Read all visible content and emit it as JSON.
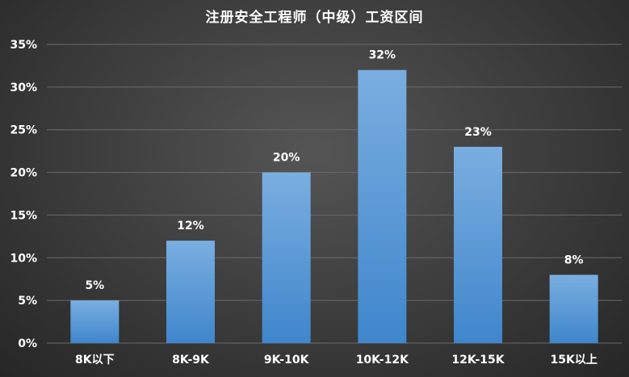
{
  "chart_data": {
    "type": "bar",
    "title": "注册安全工程师（中级）工资区间",
    "categories": [
      "8K以下",
      "8K-9K",
      "9K-10K",
      "10K-12K",
      "12K-15K",
      "15K以上"
    ],
    "values": [
      5,
      12,
      20,
      32,
      23,
      8
    ],
    "data_labels": [
      "5%",
      "12%",
      "20%",
      "32%",
      "23%",
      "8%"
    ],
    "y_ticks": [
      "0%",
      "5%",
      "10%",
      "15%",
      "20%",
      "25%",
      "30%",
      "35%"
    ],
    "y_tick_values": [
      0,
      5,
      10,
      15,
      20,
      25,
      30,
      35
    ],
    "ylim": [
      0,
      35
    ],
    "grid": true,
    "legend": "none",
    "colors": {
      "bar_top": "#7aaee0",
      "bar_bottom": "#3f86cc",
      "grid": "#6a6a6a",
      "text": "#ffffff"
    }
  }
}
